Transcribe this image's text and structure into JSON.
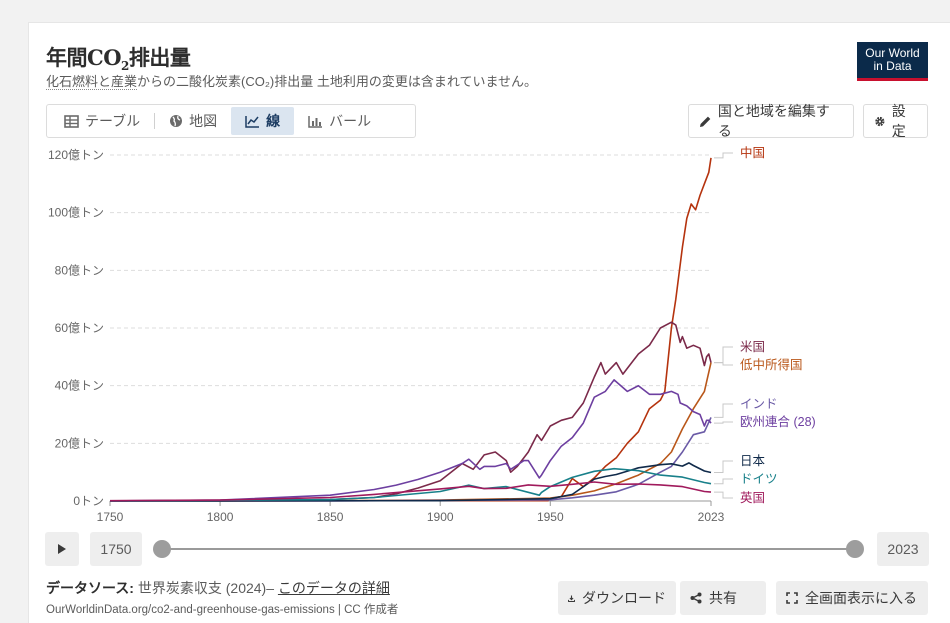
{
  "header": {
    "title_pre": "年間CO",
    "title_sub": "2",
    "title_post": "排出量",
    "subtitle_link": "化石燃料と産業",
    "subtitle_text": "からの二酸化炭素(CO₂)排出量 土地利用の変更は含まれていません。",
    "logo_line1": "Our World",
    "logo_line2": "in Data"
  },
  "tabs": [
    {
      "label": "テーブル",
      "icon": "table-icon"
    },
    {
      "label": "地図",
      "icon": "globe-icon"
    },
    {
      "label": "線",
      "icon": "line-chart-icon",
      "active": true
    },
    {
      "label": "バール",
      "icon": "bar-chart-icon"
    }
  ],
  "buttons": {
    "edit_label": "国と地域を編集する",
    "settings_label": "設定"
  },
  "chart_data": {
    "type": "line",
    "title": "年間CO₂排出量",
    "ylim": [
      0,
      120
    ],
    "yticks": [
      0,
      20,
      40,
      60,
      80,
      100,
      120
    ],
    "ytick_labels": [
      "0トン",
      "20億トン",
      "40億トン",
      "60億トン",
      "80億トン",
      "100億トン",
      "120億トン"
    ],
    "xlim": [
      1750,
      2023
    ],
    "xticks": [
      1750,
      1800,
      1850,
      1900,
      1950,
      2023
    ],
    "grid": "horizontal dashed",
    "legend": "right, inline labels",
    "series": [
      {
        "name": "中国",
        "color": "#b5330e",
        "x": [
          1750,
          1900,
          1949,
          1950,
          1955,
          1960,
          1965,
          1970,
          1975,
          1980,
          1985,
          1990,
          1995,
          2000,
          2002,
          2005,
          2007,
          2010,
          2012,
          2014,
          2016,
          2018,
          2020,
          2022,
          2023
        ],
        "y": [
          0,
          0.1,
          0.1,
          0.8,
          1.5,
          7.8,
          5,
          8,
          12,
          15,
          20,
          24,
          32,
          35,
          38,
          60,
          70,
          88,
          98,
          103,
          101,
          106,
          110,
          114,
          119
        ]
      },
      {
        "name": "米国",
        "color": "#7b2a4a",
        "x": [
          1750,
          1800,
          1850,
          1870,
          1880,
          1890,
          1900,
          1910,
          1915,
          1920,
          1925,
          1930,
          1932,
          1935,
          1940,
          1944,
          1946,
          1950,
          1955,
          1960,
          1965,
          1970,
          1973,
          1975,
          1980,
          1983,
          1985,
          1990,
          1995,
          2000,
          2005,
          2007,
          2009,
          2010,
          2012,
          2015,
          2018,
          2020,
          2021,
          2022,
          2023
        ],
        "y": [
          0,
          0.02,
          0.5,
          1.2,
          2.5,
          4.5,
          7,
          13,
          11,
          16,
          17,
          14,
          10,
          12,
          17,
          23,
          21,
          26,
          28,
          29,
          34,
          43,
          48,
          44,
          48,
          44,
          46,
          51,
          54,
          60,
          62,
          61,
          55,
          57,
          53,
          54,
          53,
          47,
          50,
          51,
          48
        ]
      },
      {
        "name": "低中所得国",
        "color": "#b9571a",
        "x": [
          1750,
          1850,
          1900,
          1950,
          1960,
          1970,
          1980,
          1990,
          2000,
          2005,
          2010,
          2015,
          2020,
          2023
        ],
        "y": [
          0,
          0.1,
          0.3,
          1,
          2,
          3.5,
          6,
          9,
          13,
          17,
          25,
          32,
          38,
          48
        ]
      },
      {
        "name": "インド",
        "color": "#6a5aa6",
        "x": [
          1750,
          1850,
          1900,
          1950,
          1960,
          1970,
          1980,
          1990,
          2000,
          2005,
          2010,
          2015,
          2020,
          2023
        ],
        "y": [
          0,
          0.02,
          0.2,
          0.4,
          1.1,
          2,
          3.2,
          5.8,
          10,
          12,
          17,
          23,
          24,
          29
        ]
      },
      {
        "name": "欧州連合 (28)",
        "color": "#6d3fa0",
        "x": [
          1750,
          1800,
          1850,
          1870,
          1880,
          1890,
          1900,
          1910,
          1913,
          1918,
          1920,
          1925,
          1930,
          1932,
          1935,
          1938,
          1940,
          1945,
          1946,
          1950,
          1955,
          1960,
          1965,
          1970,
          1975,
          1979,
          1985,
          1990,
          1995,
          2000,
          2005,
          2008,
          2009,
          2012,
          2015,
          2018,
          2020,
          2021,
          2022,
          2023
        ],
        "y": [
          0,
          0.3,
          2,
          4,
          5.5,
          7.5,
          10,
          13,
          14.5,
          11,
          12,
          12,
          13,
          11,
          12.5,
          14,
          14,
          8,
          9,
          14,
          19,
          22,
          27,
          36,
          38,
          42,
          38,
          40,
          37,
          37,
          38,
          37,
          34,
          33,
          31,
          30,
          26,
          28,
          28,
          27
        ]
      },
      {
        "name": "日本",
        "color": "#102a4a",
        "x": [
          1750,
          1900,
          1950,
          1960,
          1970,
          1975,
          1980,
          1990,
          2000,
          2005,
          2010,
          2013,
          2015,
          2020,
          2023
        ],
        "y": [
          0,
          0.1,
          0.8,
          2.3,
          7.6,
          8.5,
          9.2,
          11.5,
          12.6,
          12.9,
          12.1,
          13.2,
          12.3,
          10.4,
          9.9
        ]
      },
      {
        "name": "ドイツ",
        "color": "#18808a",
        "x": [
          1750,
          1850,
          1870,
          1900,
          1913,
          1920,
          1930,
          1945,
          1946,
          1950,
          1960,
          1970,
          1979,
          1990,
          2000,
          2010,
          2020,
          2023
        ],
        "y": [
          0,
          0.5,
          1.2,
          3.3,
          5.5,
          4.3,
          5,
          2,
          3,
          5,
          8.2,
          10.3,
          11.2,
          10.5,
          9,
          8.3,
          6.4,
          6
        ]
      },
      {
        "name": "英国",
        "color": "#a01a5c",
        "x": [
          1750,
          1800,
          1850,
          1870,
          1900,
          1913,
          1920,
          1930,
          1940,
          1950,
          1960,
          1970,
          1980,
          1990,
          2000,
          2010,
          2020,
          2023
        ],
        "y": [
          0.1,
          0.3,
          1.2,
          2.3,
          4.2,
          5.1,
          4.3,
          4.4,
          5.6,
          5.1,
          5.8,
          6.6,
          5.8,
          5.9,
          5.6,
          5,
          3.3,
          3.1
        ]
      }
    ]
  },
  "timeline": {
    "start_year": "1750",
    "end_year": "2023"
  },
  "footer": {
    "source_label": "データソース:",
    "source_text": "世界炭素収支 (2024)–",
    "details_link": "このデータの詳細",
    "url_text": "OurWorldinData.org/co2-and-greenhouse-gas-emissions | CC 作成者",
    "download_label": "ダウンロード",
    "share_label": "共有",
    "fullscreen_label": "全画面表示に入る"
  }
}
